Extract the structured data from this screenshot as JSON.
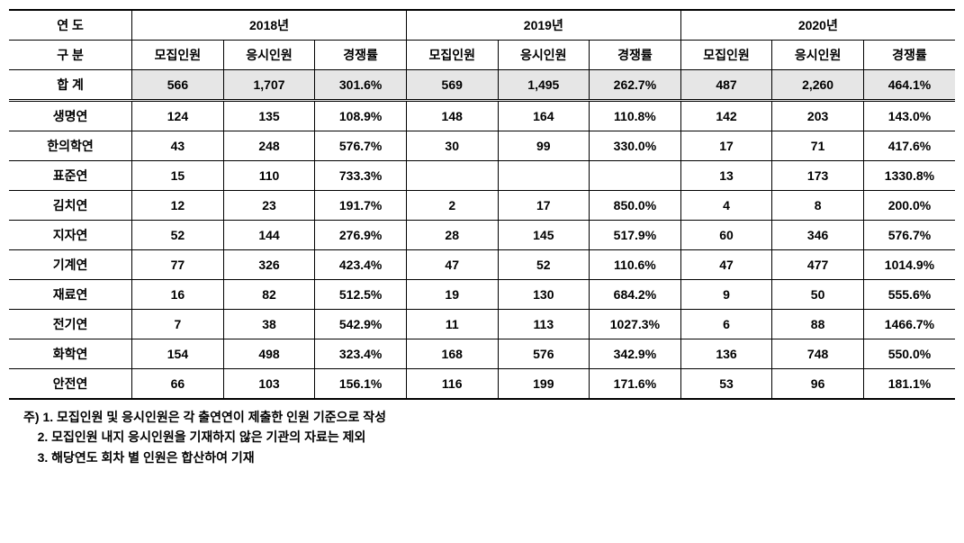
{
  "table": {
    "header": {
      "year_label": "연  도",
      "category_label": "구  분",
      "total_label": "합  계",
      "years": [
        "2018년",
        "2019년",
        "2020년"
      ],
      "subcols": [
        "모집인원",
        "응시인원",
        "경쟁률"
      ]
    },
    "totals": {
      "y2018": [
        "566",
        "1,707",
        "301.6%"
      ],
      "y2019": [
        "569",
        "1,495",
        "262.7%"
      ],
      "y2020": [
        "487",
        "2,260",
        "464.1%"
      ]
    },
    "rows": [
      {
        "label": "생명연",
        "y2018": [
          "124",
          "135",
          "108.9%"
        ],
        "y2019": [
          "148",
          "164",
          "110.8%"
        ],
        "y2020": [
          "142",
          "203",
          "143.0%"
        ]
      },
      {
        "label": "한의학연",
        "y2018": [
          "43",
          "248",
          "576.7%"
        ],
        "y2019": [
          "30",
          "99",
          "330.0%"
        ],
        "y2020": [
          "17",
          "71",
          "417.6%"
        ]
      },
      {
        "label": "표준연",
        "y2018": [
          "15",
          "110",
          "733.3%"
        ],
        "y2019": [
          "",
          "",
          ""
        ],
        "y2020": [
          "13",
          "173",
          "1330.8%"
        ]
      },
      {
        "label": "김치연",
        "y2018": [
          "12",
          "23",
          "191.7%"
        ],
        "y2019": [
          "2",
          "17",
          "850.0%"
        ],
        "y2020": [
          "4",
          "8",
          "200.0%"
        ]
      },
      {
        "label": "지자연",
        "y2018": [
          "52",
          "144",
          "276.9%"
        ],
        "y2019": [
          "28",
          "145",
          "517.9%"
        ],
        "y2020": [
          "60",
          "346",
          "576.7%"
        ]
      },
      {
        "label": "기계연",
        "y2018": [
          "77",
          "326",
          "423.4%"
        ],
        "y2019": [
          "47",
          "52",
          "110.6%"
        ],
        "y2020": [
          "47",
          "477",
          "1014.9%"
        ]
      },
      {
        "label": "재료연",
        "y2018": [
          "16",
          "82",
          "512.5%"
        ],
        "y2019": [
          "19",
          "130",
          "684.2%"
        ],
        "y2020": [
          "9",
          "50",
          "555.6%"
        ]
      },
      {
        "label": "전기연",
        "y2018": [
          "7",
          "38",
          "542.9%"
        ],
        "y2019": [
          "11",
          "113",
          "1027.3%"
        ],
        "y2020": [
          "6",
          "88",
          "1466.7%"
        ]
      },
      {
        "label": "화학연",
        "y2018": [
          "154",
          "498",
          "323.4%"
        ],
        "y2019": [
          "168",
          "576",
          "342.9%"
        ],
        "y2020": [
          "136",
          "748",
          "550.0%"
        ]
      },
      {
        "label": "안전연",
        "y2018": [
          "66",
          "103",
          "156.1%"
        ],
        "y2019": [
          "116",
          "199",
          "171.6%"
        ],
        "y2020": [
          "53",
          "96",
          "181.1%"
        ]
      }
    ]
  },
  "footnotes": {
    "prefix": "주)",
    "items": [
      "1. 모집인원 및 응시인원은 각 출연연이 제출한 인원 기준으로 작성",
      "2. 모집인원 내지 응시인원을 기재하지 않은 기관의 자료는 제외",
      "3. 해당연도 회차 별 인원은 합산하여 기재"
    ]
  },
  "style": {
    "background": "#ffffff",
    "highlight_bg": "#e6e6e6",
    "border_color": "#000000",
    "font_size_pt": 14
  }
}
